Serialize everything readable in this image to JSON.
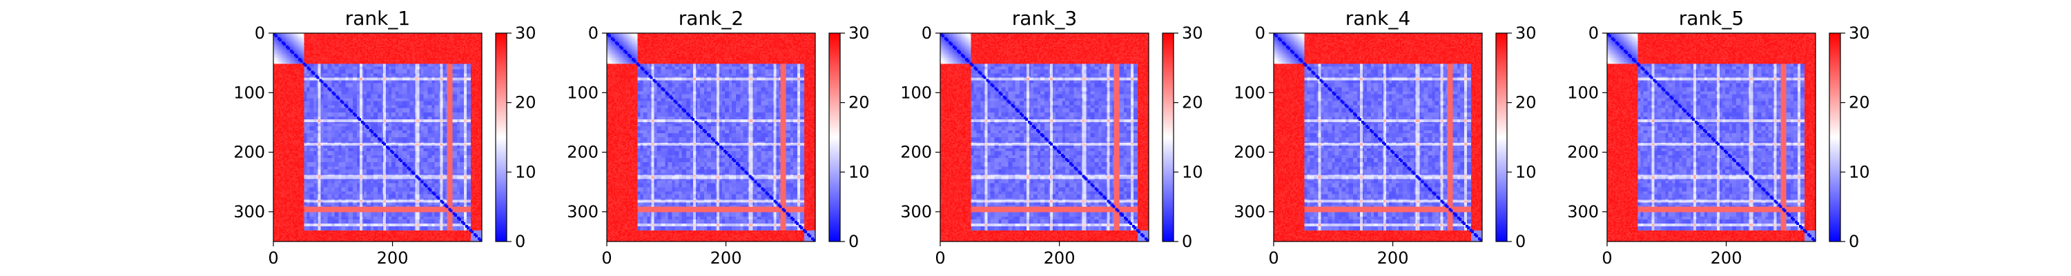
{
  "chart_data": [
    {
      "type": "heatmap",
      "title": "rank_1",
      "xlim": [
        0,
        350
      ],
      "ylim": [
        0,
        350
      ],
      "x_ticks": [
        0,
        200
      ],
      "y_ticks": [
        0,
        100,
        200,
        300
      ],
      "colorbar": {
        "min": 0,
        "max": 30,
        "ticks": [
          0,
          10,
          20,
          30
        ],
        "colormap": [
          "#0000ff",
          "#ffffff",
          "#ff0000"
        ]
      }
    },
    {
      "type": "heatmap",
      "title": "rank_2",
      "xlim": [
        0,
        350
      ],
      "ylim": [
        0,
        350
      ],
      "x_ticks": [
        0,
        200
      ],
      "y_ticks": [
        0,
        100,
        200,
        300
      ],
      "colorbar": {
        "min": 0,
        "max": 30,
        "ticks": [
          0,
          10,
          20,
          30
        ],
        "colormap": [
          "#0000ff",
          "#ffffff",
          "#ff0000"
        ]
      }
    },
    {
      "type": "heatmap",
      "title": "rank_3",
      "xlim": [
        0,
        350
      ],
      "ylim": [
        0,
        350
      ],
      "x_ticks": [
        0,
        200
      ],
      "y_ticks": [
        0,
        100,
        200,
        300
      ],
      "colorbar": {
        "min": 0,
        "max": 30,
        "ticks": [
          0,
          10,
          20,
          30
        ],
        "colormap": [
          "#0000ff",
          "#ffffff",
          "#ff0000"
        ]
      }
    },
    {
      "type": "heatmap",
      "title": "rank_4",
      "xlim": [
        0,
        350
      ],
      "ylim": [
        0,
        350
      ],
      "x_ticks": [
        0,
        200
      ],
      "y_ticks": [
        0,
        100,
        200,
        300
      ],
      "colorbar": {
        "min": 0,
        "max": 30,
        "ticks": [
          0,
          10,
          20,
          30
        ],
        "colormap": [
          "#0000ff",
          "#ffffff",
          "#ff0000"
        ]
      }
    },
    {
      "type": "heatmap",
      "title": "rank_5",
      "xlim": [
        0,
        350
      ],
      "ylim": [
        0,
        350
      ],
      "x_ticks": [
        0,
        200
      ],
      "y_ticks": [
        0,
        100,
        200,
        300
      ],
      "colorbar": {
        "min": 0,
        "max": 30,
        "ticks": [
          0,
          10,
          20,
          30
        ],
        "colormap": [
          "#0000ff",
          "#ffffff",
          "#ff0000"
        ]
      }
    }
  ],
  "structure": {
    "residue_count": 350,
    "domain_boundaries": [
      [
        0,
        50
      ],
      [
        50,
        330
      ],
      [
        330,
        350
      ]
    ],
    "interdomain_distance": 28,
    "intradomain_distance": 5
  },
  "colors": {
    "low": "#0000ff",
    "mid": "#ffffff",
    "high": "#ff0000"
  }
}
